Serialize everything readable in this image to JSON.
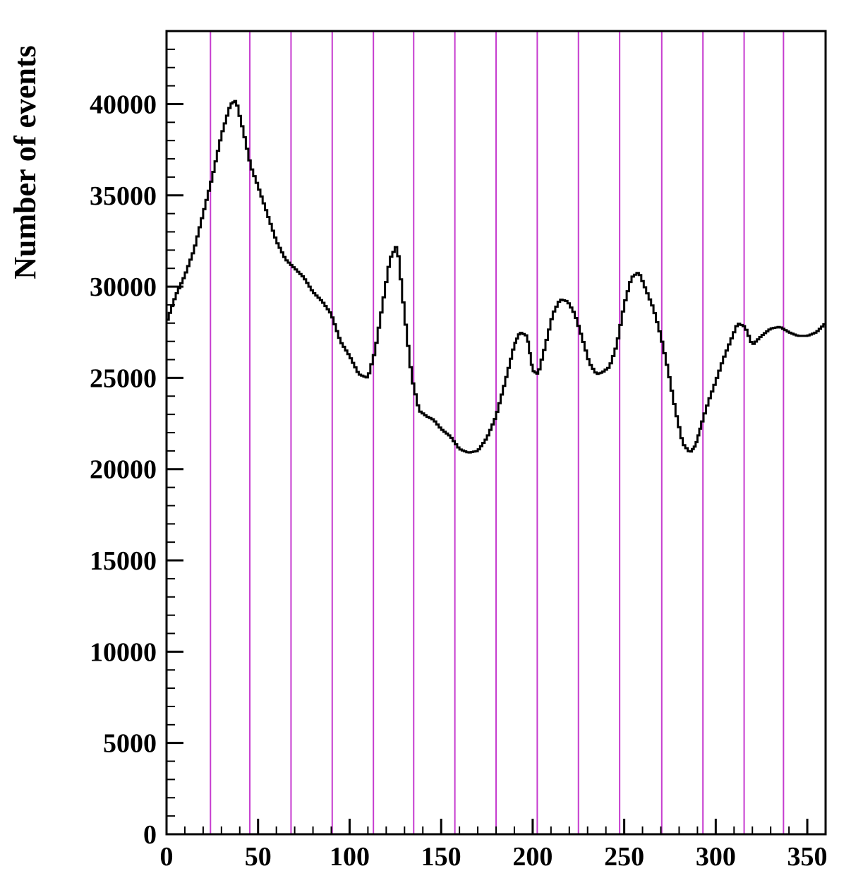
{
  "chart_data": {
    "type": "line",
    "title": "",
    "xlabel": "",
    "ylabel": "Number of events",
    "xlim": [
      0,
      360
    ],
    "ylim": [
      0,
      44000
    ],
    "x_ticks": [
      0,
      50,
      100,
      150,
      200,
      250,
      300,
      350
    ],
    "y_ticks": [
      0,
      5000,
      10000,
      15000,
      20000,
      25000,
      30000,
      35000,
      40000
    ],
    "x_tick_labels": [
      "0",
      "50",
      "100",
      "150",
      "200",
      "250",
      "300",
      "350"
    ],
    "y_tick_labels": [
      "0",
      "5000",
      "10000",
      "15000",
      "20000",
      "25000",
      "30000",
      "35000",
      "40000"
    ],
    "grid": false,
    "series": [
      {
        "color": "#000000",
        "x": [
          0,
          5,
          10,
          15,
          20,
          25,
          30,
          35,
          38,
          42,
          46,
          50,
          55,
          60,
          65,
          70,
          75,
          80,
          85,
          90,
          95,
          100,
          105,
          110,
          114,
          118,
          122,
          126,
          130,
          134,
          138,
          142,
          146,
          150,
          155,
          160,
          165,
          170,
          175,
          180,
          185,
          190,
          193,
          197,
          200,
          203,
          207,
          211,
          215,
          219,
          223,
          227,
          231,
          235,
          238,
          242,
          246,
          250,
          254,
          258,
          262,
          266,
          270,
          274,
          278,
          282,
          286,
          289,
          292,
          296,
          300,
          304,
          308,
          312,
          316,
          320,
          325,
          330,
          335,
          340,
          345,
          350,
          355,
          360
        ],
        "y": [
          28000,
          29500,
          30600,
          32000,
          34000,
          36000,
          38300,
          40000,
          40200,
          38500,
          36600,
          35500,
          34000,
          32500,
          31500,
          31000,
          30500,
          29700,
          29200,
          28500,
          27000,
          26200,
          25200,
          25000,
          26500,
          29000,
          31500,
          32300,
          28500,
          25000,
          23200,
          22900,
          22700,
          22200,
          21800,
          21100,
          20900,
          21000,
          21700,
          22900,
          24800,
          26800,
          27500,
          27300,
          25400,
          25200,
          26800,
          28500,
          29300,
          29200,
          28500,
          27200,
          25800,
          25200,
          25300,
          25600,
          26800,
          29000,
          30500,
          30800,
          29800,
          28800,
          27300,
          25400,
          23200,
          21400,
          20900,
          21300,
          22400,
          23700,
          24800,
          26000,
          27000,
          28000,
          27800,
          26800,
          27300,
          27700,
          27800,
          27500,
          27300,
          27300,
          27500,
          28000
        ]
      }
    ],
    "vertical_lines": {
      "color": "#c63ccf",
      "x": [
        24,
        45.5,
        68,
        90.5,
        113,
        135,
        157.5,
        180,
        202.5,
        225,
        247.5,
        270.5,
        293,
        315.5,
        337
      ]
    }
  }
}
